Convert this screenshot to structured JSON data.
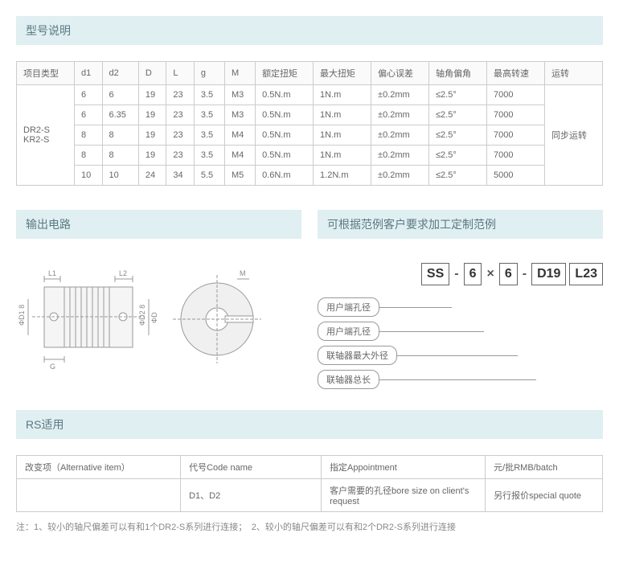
{
  "section1_title": "型号说明",
  "spec_table": {
    "headers": [
      "项目类型",
      "d1",
      "d2",
      "D",
      "L",
      "g",
      "M",
      "额定扭矩",
      "最大扭矩",
      "偏心误差",
      "轴角偏角",
      "最高转速",
      "运转"
    ],
    "type_label": "DR2-S\nKR2-S",
    "operation_label": "同步运转",
    "rows": [
      [
        "6",
        "6",
        "19",
        "23",
        "3.5",
        "M3",
        "0.5N.m",
        "1N.m",
        "±0.2mm",
        "≤2.5°",
        "7000"
      ],
      [
        "6",
        "6.35",
        "19",
        "23",
        "3.5",
        "M3",
        "0.5N.m",
        "1N.m",
        "±0.2mm",
        "≤2.5°",
        "7000"
      ],
      [
        "8",
        "8",
        "19",
        "23",
        "3.5",
        "M4",
        "0.5N.m",
        "1N.m",
        "±0.2mm",
        "≤2.5°",
        "7000"
      ],
      [
        "8",
        "8",
        "19",
        "23",
        "3.5",
        "M4",
        "0.5N.m",
        "1N.m",
        "±0.2mm",
        "≤2.5°",
        "7000"
      ],
      [
        "10",
        "10",
        "24",
        "34",
        "5.5",
        "M5",
        "0.6N.m",
        "1.2N.m",
        "±0.2mm",
        "≤2.5°",
        "5000"
      ]
    ]
  },
  "section2_title": "输出电路",
  "section3_title": "可根据范例客户要求加工定制范例",
  "code": {
    "p1": "SS",
    "s1": "-",
    "p2": "6",
    "s2": "×",
    "p3": "6",
    "s3": "-",
    "p4": "D19",
    "p5": "L23"
  },
  "code_labels": {
    "l1": "用户端孔径",
    "l2": "用户端孔径",
    "l3": "联轴器最大外径",
    "l4": "联轴器总长"
  },
  "section4_title": "RS适用",
  "rs_table": {
    "headers": [
      "改变项（Alternative item）",
      "代号Code name",
      "指定Appointment",
      "元/批RMB/batch"
    ],
    "row": [
      "",
      "D1、D2",
      "客户需要的孔径bore size on client's request",
      "另行报价special quote"
    ]
  },
  "note_text": "注：1、较小的轴尺偏差可以有和1个DR2-S系列进行连接；　2、较小的轴尺偏差可以有和2个DR2-S系列进行连接",
  "diagram_labels": {
    "L1": "L1",
    "L2": "L2",
    "D1": "ΦD1 8",
    "D2": "ΦD2 8",
    "D": "ΦD",
    "G": "G",
    "M": "M"
  },
  "colors": {
    "section_bg": "#e0eff1",
    "section_text": "#5a7a82",
    "border": "#cccccc",
    "text": "#666666"
  }
}
